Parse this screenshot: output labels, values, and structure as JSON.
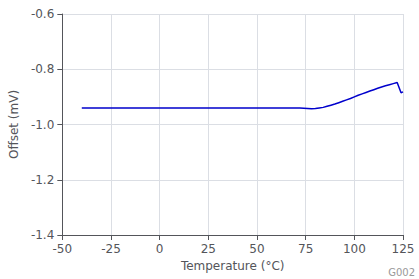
{
  "chart_data": {
    "type": "line",
    "xlabel": "Temperature (°C)",
    "ylabel": "Offset (mV)",
    "annotations": [
      "G002"
    ],
    "color": "#0000CC",
    "x": [
      -40,
      -35,
      -30,
      -25,
      -20,
      -15,
      -10,
      -5,
      0,
      5,
      10,
      15,
      20,
      25,
      30,
      35,
      40,
      45,
      50,
      55,
      60,
      65,
      70,
      72,
      74,
      76,
      78,
      80,
      82,
      84,
      86,
      88,
      90,
      92,
      94,
      96,
      98,
      100,
      102,
      104,
      106,
      108,
      110,
      112,
      114,
      116,
      118,
      120,
      122,
      124,
      125
    ],
    "values": [
      -0.94,
      -0.94,
      -0.94,
      -0.94,
      -0.94,
      -0.94,
      -0.94,
      -0.94,
      -0.94,
      -0.94,
      -0.94,
      -0.94,
      -0.94,
      -0.94,
      -0.94,
      -0.94,
      -0.94,
      -0.94,
      -0.94,
      -0.94,
      -0.94,
      -0.94,
      -0.94,
      -0.94,
      -0.941,
      -0.942,
      -0.943,
      -0.942,
      -0.94,
      -0.938,
      -0.934,
      -0.93,
      -0.926,
      -0.921,
      -0.916,
      -0.911,
      -0.906,
      -0.9,
      -0.894,
      -0.889,
      -0.884,
      -0.879,
      -0.874,
      -0.869,
      -0.864,
      -0.86,
      -0.856,
      -0.852,
      -0.848,
      -0.885,
      -0.882
    ],
    "xlim": [
      -50,
      125
    ],
    "ylim": [
      -1.4,
      -0.6
    ],
    "xticks": [
      -50,
      -25,
      0,
      25,
      50,
      75,
      100,
      125
    ],
    "yticks": [
      -1.4,
      -1.2,
      {
        "value": -1.0,
        "label": "-1.0"
      },
      -0.8,
      -0.6
    ],
    "grid": true
  }
}
